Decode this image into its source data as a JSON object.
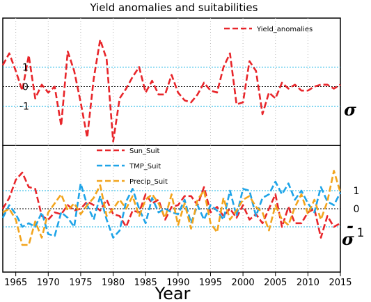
{
  "chart_data": {
    "title": "Yield anomalies and suitabilities",
    "xlabel": "Year",
    "x_ticks": [
      1965,
      1970,
      1975,
      1980,
      1985,
      1990,
      1995,
      2000,
      2005,
      2010,
      2015
    ],
    "xlim": [
      1963,
      2015
    ],
    "panels": [
      {
        "type": "line",
        "ylim": [
          -3,
          3.5
        ],
        "y_tick_labels": [
          {
            "value": 1,
            "label": "1"
          },
          {
            "value": 0,
            "label": "0"
          },
          {
            "value": -1,
            "label": "-1"
          }
        ],
        "ylabel": "σ",
        "legend_position": "top-right",
        "series": [
          {
            "name": "Yield_anomalies",
            "color": "#e8252a",
            "x": [
              1963,
              1964,
              1965,
              1966,
              1967,
              1968,
              1969,
              1970,
              1971,
              1972,
              1973,
              1974,
              1975,
              1976,
              1977,
              1978,
              1979,
              1980,
              1981,
              1982,
              1983,
              1984,
              1985,
              1986,
              1987,
              1988,
              1989,
              1990,
              1991,
              1992,
              1993,
              1994,
              1995,
              1996,
              1997,
              1998,
              1999,
              2000,
              2001,
              2002,
              2003,
              2004,
              2005,
              2006,
              2007,
              2008,
              2009,
              2010,
              2011,
              2012,
              2013,
              2014,
              2015
            ],
            "values": [
              1.1,
              1.7,
              0.8,
              -0.2,
              1.6,
              -0.6,
              0.1,
              -0.3,
              0.0,
              -2.0,
              1.8,
              0.8,
              -0.8,
              -2.6,
              0.4,
              2.4,
              1.4,
              -2.8,
              -0.6,
              -0.1,
              0.5,
              1.0,
              -0.3,
              0.3,
              -0.4,
              -0.4,
              0.6,
              -0.3,
              -0.7,
              -0.8,
              -0.4,
              0.2,
              -0.2,
              -0.3,
              1.0,
              1.7,
              -0.9,
              -0.8,
              1.3,
              0.8,
              -1.4,
              -0.3,
              -0.6,
              0.2,
              -0.1,
              0.1,
              -0.2,
              -0.2,
              0.0,
              0.1,
              0.1,
              -0.1,
              0.1
            ]
          }
        ]
      },
      {
        "type": "line",
        "ylim": [
          -3.5,
          3.5
        ],
        "y_tick_labels": [
          {
            "value": 1,
            "label": "1"
          },
          {
            "value": 0,
            "label": "0"
          }
        ],
        "ylabel": "σ",
        "ylabel_prefix": "-",
        "ylabel_suffix": "1",
        "legend_position": "top-center",
        "series": [
          {
            "name": "Sun_Suit",
            "color": "#e8252a",
            "x": [
              1963,
              1964,
              1965,
              1966,
              1967,
              1968,
              1969,
              1970,
              1971,
              1972,
              1973,
              1974,
              1975,
              1976,
              1977,
              1978,
              1979,
              1980,
              1981,
              1982,
              1983,
              1984,
              1985,
              1986,
              1987,
              1988,
              1989,
              1990,
              1991,
              1992,
              1993,
              1994,
              1995,
              1996,
              1997,
              1998,
              1999,
              2000,
              2001,
              2002,
              2003,
              2004,
              2005,
              2006,
              2007,
              2008,
              2009,
              2010,
              2011,
              2012,
              2013,
              2014,
              2015
            ],
            "values": [
              0.0,
              0.6,
              1.6,
              2.0,
              1.2,
              1.1,
              -0.4,
              -0.6,
              -0.2,
              -0.3,
              0.2,
              -0.1,
              0.0,
              0.4,
              0.2,
              -0.1,
              0.5,
              -0.3,
              -0.4,
              -1.0,
              -0.1,
              -0.2,
              0.8,
              0.3,
              0.5,
              -0.6,
              0.1,
              0.2,
              0.7,
              0.7,
              0.2,
              1.2,
              -0.2,
              0.1,
              -0.4,
              0.0,
              -0.5,
              0.2,
              -0.6,
              -0.3,
              -0.8,
              0.0,
              0.8,
              -1.0,
              0.1,
              -0.8,
              -0.8,
              -0.2,
              0.0,
              -1.6,
              -0.4,
              -1.0,
              -0.8
            ]
          },
          {
            "name": "TMP_Suit",
            "color": "#1ea4e8",
            "x": [
              1963,
              1964,
              1965,
              1966,
              1967,
              1968,
              1969,
              1970,
              1971,
              1972,
              1973,
              1974,
              1975,
              1976,
              1977,
              1978,
              1979,
              1980,
              1981,
              1982,
              1983,
              1984,
              1985,
              1986,
              1987,
              1988,
              1989,
              1990,
              1991,
              1992,
              1993,
              1994,
              1995,
              1996,
              1997,
              1998,
              1999,
              2000,
              2001,
              2002,
              2003,
              2004,
              2005,
              2006,
              2007,
              2008,
              2009,
              2010,
              2011,
              2012,
              2013,
              2014,
              2015
            ],
            "values": [
              -0.5,
              0.2,
              -0.3,
              -1.0,
              -0.8,
              -1.0,
              -0.2,
              -1.4,
              -1.5,
              -0.2,
              -0.5,
              -1.0,
              1.4,
              0.2,
              -0.6,
              0.7,
              -0.6,
              -1.6,
              -1.2,
              0.4,
              1.1,
              0.0,
              -0.8,
              0.6,
              -0.2,
              0.0,
              -0.2,
              -0.3,
              0.5,
              -0.8,
              0.2,
              -0.6,
              0.2,
              -0.1,
              -0.6,
              1.0,
              -0.4,
              1.1,
              1.0,
              -0.4,
              0.6,
              0.8,
              1.5,
              0.8,
              1.4,
              0.5,
              1.0,
              0.3,
              -0.2,
              1.2,
              0.4,
              0.2,
              0.9
            ]
          },
          {
            "name": "Precip_Suit",
            "color": "#f2a41d",
            "x": [
              1963,
              1964,
              1965,
              1966,
              1967,
              1968,
              1969,
              1970,
              1971,
              1972,
              1973,
              1974,
              1975,
              1976,
              1977,
              1978,
              1979,
              1980,
              1981,
              1982,
              1983,
              1984,
              1985,
              1986,
              1987,
              1988,
              1989,
              1990,
              1991,
              1992,
              1993,
              1994,
              1995,
              1996,
              1997,
              1998,
              1999,
              2000,
              2001,
              2002,
              2003,
              2004,
              2005,
              2006,
              2007,
              2008,
              2009,
              2010,
              2011,
              2012,
              2013,
              2014,
              2015
            ],
            "values": [
              -0.2,
              0.0,
              -0.6,
              -2.0,
              -2.0,
              -0.7,
              -1.6,
              -0.2,
              0.3,
              0.8,
              -0.1,
              0.3,
              -0.3,
              0.2,
              0.6,
              1.3,
              -0.4,
              0.0,
              0.5,
              0.0,
              0.7,
              -0.4,
              0.5,
              0.8,
              0.3,
              -0.5,
              0.8,
              -0.9,
              0.3,
              -1.1,
              0.5,
              1.0,
              -0.8,
              -1.3,
              0.6,
              -0.6,
              -0.1,
              0.5,
              0.7,
              0.1,
              -0.2,
              -1.2,
              0.2,
              -0.6,
              -0.9,
              0.1,
              0.8,
              -0.3,
              0.5,
              -0.6,
              0.4,
              2.1,
              0.9
            ]
          }
        ]
      }
    ]
  }
}
